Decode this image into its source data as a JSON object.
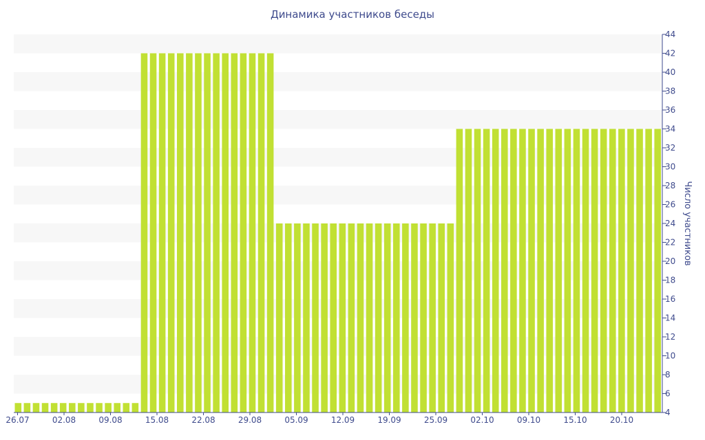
{
  "chart_data": {
    "type": "bar",
    "title": "Динамика участников беседы",
    "xlabel": "",
    "ylabel": "Число участников",
    "ylim": [
      4,
      44
    ],
    "y_ticks": [
      4,
      6,
      8,
      10,
      12,
      14,
      16,
      18,
      20,
      22,
      24,
      26,
      28,
      30,
      32,
      34,
      36,
      38,
      40,
      42,
      44
    ],
    "x_tick_labels": [
      "26.07",
      "02.08",
      "09.08",
      "15.08",
      "22.08",
      "29.08",
      "05.09",
      "12.09",
      "19.09",
      "25.09",
      "02.10",
      "09.10",
      "15.10",
      "20.10"
    ],
    "grid": "horizontal bands",
    "legend": "none",
    "bar_color": "#c1e033",
    "band_color": "#f7f7f7",
    "text_color": "#3e4a8c",
    "values": [
      5,
      5,
      5,
      5,
      5,
      5,
      5,
      5,
      5,
      5,
      5,
      5,
      5,
      5,
      42,
      42,
      42,
      42,
      42,
      42,
      42,
      42,
      42,
      42,
      42,
      42,
      42,
      42,
      42,
      24,
      24,
      24,
      24,
      24,
      24,
      24,
      24,
      24,
      24,
      24,
      24,
      24,
      24,
      24,
      24,
      24,
      24,
      24,
      24,
      34,
      34,
      34,
      34,
      34,
      34,
      34,
      34,
      34,
      34,
      34,
      34,
      34,
      34,
      34,
      34,
      34,
      34,
      34,
      34,
      34,
      34,
      34
    ]
  }
}
